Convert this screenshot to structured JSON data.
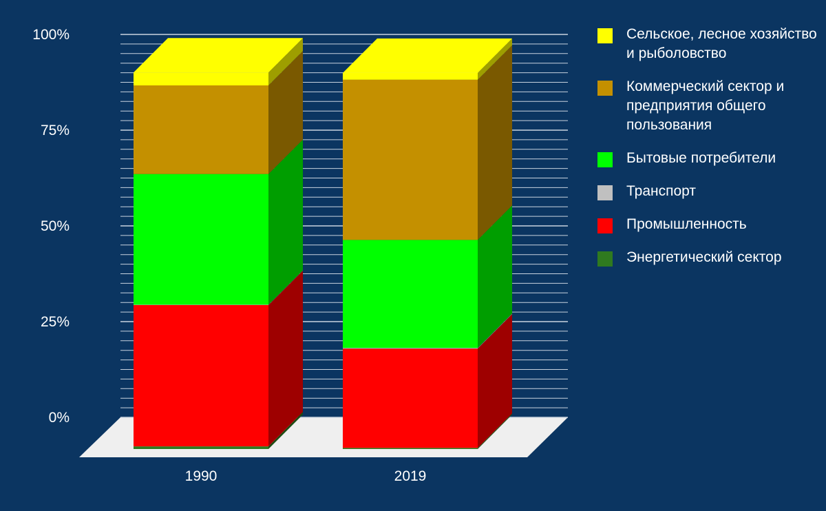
{
  "chart_data": {
    "type": "bar",
    "stacked": true,
    "percent": true,
    "categories": [
      "1990",
      "2019"
    ],
    "yticks": [
      "0%",
      "25%",
      "50%",
      "75%",
      "100%"
    ],
    "ylim": [
      0,
      100
    ],
    "series": [
      {
        "name": "Энергетический сектор",
        "color": "#2f7a1f",
        "values": [
          0.7,
          0.3
        ]
      },
      {
        "name": "Промышленность",
        "color": "#ff0000",
        "values": [
          37.3,
          26.2
        ]
      },
      {
        "name": "Транспорт",
        "color": "#c0c0c0",
        "values": [
          0.1,
          0.2
        ]
      },
      {
        "name": "Бытовые потребители",
        "color": "#00ff00",
        "values": [
          34.5,
          28.5
        ]
      },
      {
        "name": "Коммерческий сектор и предприятия общего пользования",
        "color": "#c49000",
        "values": [
          23.4,
          42.3
        ]
      },
      {
        "name": "Сельское, лесное хозяйство и рыболовство",
        "color": "#ffff00",
        "values": [
          3.4,
          1.8
        ]
      }
    ],
    "legend": [
      {
        "label": "Сельское, лесное хозяйство и рыболовство",
        "color": "#ffff00"
      },
      {
        "label": "Коммерческий сектор и предприятия общего пользования",
        "color": "#c49000"
      },
      {
        "label": "Бытовые потребители",
        "color": "#00ff00"
      },
      {
        "label": "Транспорт",
        "color": "#c0c0c0"
      },
      {
        "label": "Промышленность",
        "color": "#ff0000"
      },
      {
        "label": "Энергетический сектор",
        "color": "#2f7a1f"
      }
    ],
    "legend_position": "right",
    "grid": true
  }
}
